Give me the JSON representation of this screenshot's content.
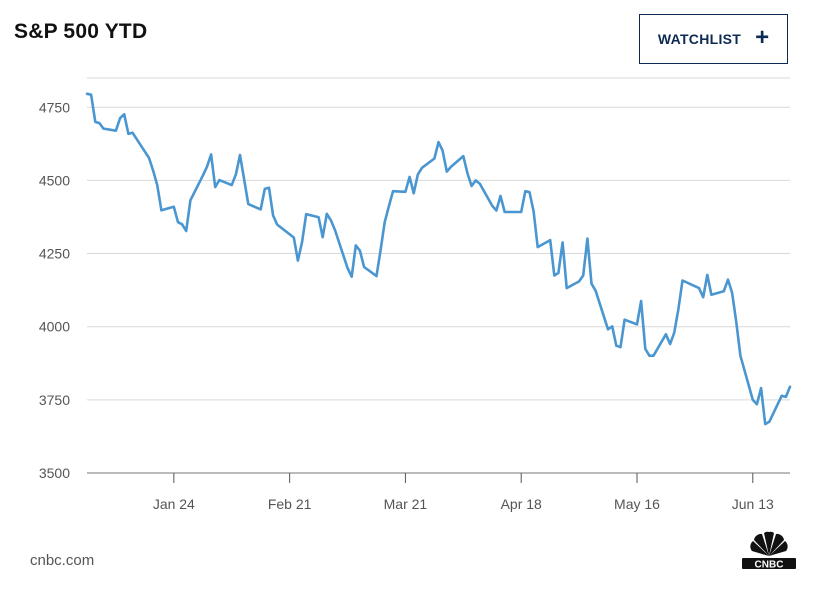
{
  "header": {
    "title": "S&P 500 YTD"
  },
  "watchlist_button": {
    "label": "WATCHLIST",
    "icon": "plus-icon"
  },
  "footer": {
    "source": "cnbc.com",
    "logo": "CNBC"
  },
  "colors": {
    "line": "#4a96d1",
    "grid": "#d9d9d9",
    "button_border": "#0d2b52"
  },
  "chart_data": {
    "type": "line",
    "title": "S&P 500 YTD",
    "xlabel": "",
    "ylabel": "",
    "ylim": [
      3500,
      4850
    ],
    "yticks": [
      4750,
      4500,
      4250,
      4000,
      3750,
      3500
    ],
    "grid": true,
    "x_tick_labels": [
      "Jan 24",
      "Feb 21",
      "Mar 21",
      "Apr 18",
      "May 16",
      "Jun 13"
    ],
    "x_tick_dates": [
      "2022-01-24",
      "2022-02-21",
      "2022-03-21",
      "2022-04-18",
      "2022-05-16",
      "2022-06-13"
    ],
    "xlim": [
      "2022-01-03",
      "2022-06-21"
    ],
    "series": [
      {
        "points": [
          [
            "2022-01-03",
            4796
          ],
          [
            "2022-01-04",
            4793
          ],
          [
            "2022-01-05",
            4700
          ],
          [
            "2022-01-06",
            4696
          ],
          [
            "2022-01-07",
            4677
          ],
          [
            "2022-01-10",
            4670
          ],
          [
            "2022-01-11",
            4713
          ],
          [
            "2022-01-12",
            4726
          ],
          [
            "2022-01-13",
            4659
          ],
          [
            "2022-01-14",
            4663
          ],
          [
            "2022-01-18",
            4577
          ],
          [
            "2022-01-19",
            4533
          ],
          [
            "2022-01-20",
            4483
          ],
          [
            "2022-01-21",
            4398
          ],
          [
            "2022-01-24",
            4410
          ],
          [
            "2022-01-25",
            4357
          ],
          [
            "2022-01-26",
            4350
          ],
          [
            "2022-01-27",
            4327
          ],
          [
            "2022-01-28",
            4432
          ],
          [
            "2022-01-31",
            4516
          ],
          [
            "2022-02-01",
            4546
          ],
          [
            "2022-02-02",
            4589
          ],
          [
            "2022-02-03",
            4477
          ],
          [
            "2022-02-04",
            4501
          ],
          [
            "2022-02-07",
            4484
          ],
          [
            "2022-02-08",
            4521
          ],
          [
            "2022-02-09",
            4587
          ],
          [
            "2022-02-10",
            4504
          ],
          [
            "2022-02-11",
            4419
          ],
          [
            "2022-02-14",
            4401
          ],
          [
            "2022-02-15",
            4471
          ],
          [
            "2022-02-16",
            4475
          ],
          [
            "2022-02-17",
            4380
          ],
          [
            "2022-02-18",
            4349
          ],
          [
            "2022-02-22",
            4305
          ],
          [
            "2022-02-23",
            4226
          ],
          [
            "2022-02-24",
            4288
          ],
          [
            "2022-02-25",
            4385
          ],
          [
            "2022-02-28",
            4374
          ],
          [
            "2022-03-01",
            4306
          ],
          [
            "2022-03-02",
            4386
          ],
          [
            "2022-03-03",
            4363
          ],
          [
            "2022-03-04",
            4329
          ],
          [
            "2022-03-07",
            4201
          ],
          [
            "2022-03-08",
            4171
          ],
          [
            "2022-03-09",
            4278
          ],
          [
            "2022-03-10",
            4260
          ],
          [
            "2022-03-11",
            4204
          ],
          [
            "2022-03-14",
            4173
          ],
          [
            "2022-03-15",
            4262
          ],
          [
            "2022-03-16",
            4357
          ],
          [
            "2022-03-17",
            4412
          ],
          [
            "2022-03-18",
            4463
          ],
          [
            "2022-03-21",
            4461
          ],
          [
            "2022-03-22",
            4512
          ],
          [
            "2022-03-23",
            4456
          ],
          [
            "2022-03-24",
            4520
          ],
          [
            "2022-03-25",
            4543
          ],
          [
            "2022-03-28",
            4575
          ],
          [
            "2022-03-29",
            4631
          ],
          [
            "2022-03-30",
            4602
          ],
          [
            "2022-03-31",
            4530
          ],
          [
            "2022-04-01",
            4546
          ],
          [
            "2022-04-04",
            4583
          ],
          [
            "2022-04-05",
            4525
          ],
          [
            "2022-04-06",
            4481
          ],
          [
            "2022-04-07",
            4500
          ],
          [
            "2022-04-08",
            4488
          ],
          [
            "2022-04-11",
            4413
          ],
          [
            "2022-04-12",
            4397
          ],
          [
            "2022-04-13",
            4447
          ],
          [
            "2022-04-14",
            4392
          ],
          [
            "2022-04-18",
            4392
          ],
          [
            "2022-04-19",
            4463
          ],
          [
            "2022-04-20",
            4460
          ],
          [
            "2022-04-21",
            4394
          ],
          [
            "2022-04-22",
            4272
          ],
          [
            "2022-04-25",
            4296
          ],
          [
            "2022-04-26",
            4175
          ],
          [
            "2022-04-27",
            4184
          ],
          [
            "2022-04-28",
            4288
          ],
          [
            "2022-04-29",
            4132
          ],
          [
            "2022-05-02",
            4155
          ],
          [
            "2022-05-03",
            4175
          ],
          [
            "2022-05-04",
            4301
          ],
          [
            "2022-05-05",
            4147
          ],
          [
            "2022-05-06",
            4123
          ],
          [
            "2022-05-09",
            3991
          ],
          [
            "2022-05-10",
            4001
          ],
          [
            "2022-05-11",
            3935
          ],
          [
            "2022-05-12",
            3930
          ],
          [
            "2022-05-13",
            4024
          ],
          [
            "2022-05-16",
            4008
          ],
          [
            "2022-05-17",
            4088
          ],
          [
            "2022-05-18",
            3924
          ],
          [
            "2022-05-19",
            3901
          ],
          [
            "2022-05-20",
            3901
          ],
          [
            "2022-05-23",
            3974
          ],
          [
            "2022-05-24",
            3941
          ],
          [
            "2022-05-25",
            3979
          ],
          [
            "2022-05-26",
            4058
          ],
          [
            "2022-05-27",
            4158
          ],
          [
            "2022-05-31",
            4132
          ],
          [
            "2022-06-01",
            4101
          ],
          [
            "2022-06-02",
            4177
          ],
          [
            "2022-06-03",
            4109
          ],
          [
            "2022-06-06",
            4121
          ],
          [
            "2022-06-07",
            4161
          ],
          [
            "2022-06-08",
            4116
          ],
          [
            "2022-06-09",
            4018
          ],
          [
            "2022-06-10",
            3901
          ],
          [
            "2022-06-13",
            3750
          ],
          [
            "2022-06-14",
            3735
          ],
          [
            "2022-06-15",
            3790
          ],
          [
            "2022-06-16",
            3667
          ],
          [
            "2022-06-17",
            3675
          ],
          [
            "2022-06-20",
            3764
          ],
          [
            "2022-06-21",
            3760
          ],
          [
            "2022-06-22",
            3795
          ]
        ]
      }
    ]
  }
}
